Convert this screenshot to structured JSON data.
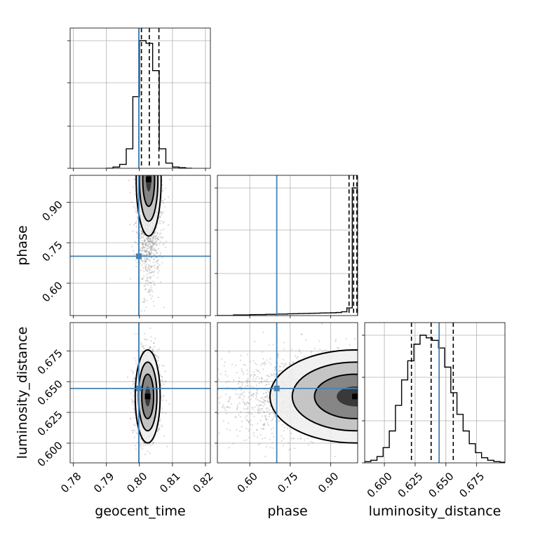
{
  "chart_data": {
    "type": "corner",
    "parameters": [
      "geocent_time",
      "phase",
      "luminosity_distance"
    ],
    "truths": {
      "geocent_time": 0.7998,
      "phase": 0.7,
      "luminosity_distance": 0.6445
    },
    "axes": {
      "geocent_time": {
        "range": [
          0.779,
          0.8215
        ],
        "ticks": [
          "0.78",
          "0.79",
          "0.80",
          "0.81",
          "0.82"
        ],
        "tick_values": [
          0.78,
          0.79,
          0.8,
          0.81,
          0.82
        ]
      },
      "phase": {
        "range": [
          0.48,
          1.0
        ],
        "ticks": [
          "0.60",
          "0.75",
          "0.90"
        ],
        "tick_values": [
          0.6,
          0.75,
          0.9
        ]
      },
      "luminosity_distance": {
        "range": [
          0.584,
          0.698
        ],
        "ticks": [
          "0.600",
          "0.625",
          "0.650",
          "0.675"
        ],
        "tick_values": [
          0.6,
          0.625,
          0.65,
          0.675
        ]
      }
    },
    "marginals": {
      "geocent_time": {
        "bin_edges": [
          0.79,
          0.792,
          0.794,
          0.796,
          0.798,
          0.8,
          0.802,
          0.804,
          0.806,
          0.808,
          0.81,
          0.812,
          0.814,
          0.816
        ],
        "counts": [
          0.0,
          0.01,
          0.03,
          0.15,
          0.55,
          0.98,
          0.96,
          0.75,
          0.15,
          0.04,
          0.01,
          0.005,
          0.0
        ],
        "quantiles": [
          0.8006,
          0.803,
          0.8059
        ]
      },
      "phase": {
        "bin_edges": [
          0.48,
          0.5,
          0.52,
          0.54,
          0.56,
          0.58,
          0.6,
          0.62,
          0.64,
          0.66,
          0.68,
          0.7,
          0.72,
          0.74,
          0.76,
          0.78,
          0.8,
          0.82,
          0.84,
          0.86,
          0.88,
          0.9,
          0.92,
          0.94,
          0.96,
          0.98,
          1.0
        ],
        "counts": [
          0.0,
          0.0,
          0.0,
          0.005,
          0.005,
          0.005,
          0.007,
          0.008,
          0.008,
          0.01,
          0.01,
          0.012,
          0.012,
          0.014,
          0.015,
          0.016,
          0.017,
          0.018,
          0.019,
          0.02,
          0.021,
          0.022,
          0.024,
          0.03,
          0.06,
          1.0
        ],
        "quantiles": [
          0.968,
          0.985,
          0.997
        ]
      },
      "luminosity_distance": {
        "bin_edges": [
          0.584,
          0.589,
          0.594,
          0.599,
          0.604,
          0.609,
          0.614,
          0.619,
          0.624,
          0.629,
          0.634,
          0.639,
          0.644,
          0.649,
          0.654,
          0.659,
          0.664,
          0.669,
          0.674,
          0.679,
          0.684,
          0.689,
          0.694,
          0.698
        ],
        "counts": [
          0.01,
          0.02,
          0.05,
          0.12,
          0.25,
          0.45,
          0.65,
          0.8,
          0.93,
          1.0,
          0.98,
          0.96,
          0.9,
          0.75,
          0.55,
          0.38,
          0.25,
          0.15,
          0.08,
          0.04,
          0.02,
          0.01,
          0.005
        ],
        "quantiles": [
          0.622,
          0.638,
          0.656
        ]
      }
    },
    "joint": {
      "geocent_time_vs_phase": {
        "center": [
          0.8028,
          0.985
        ],
        "spread": [
          0.0018,
          0.1
        ]
      },
      "geocent_time_vs_luminosity_distance": {
        "center": [
          0.8025,
          0.638
        ],
        "spread": [
          0.0018,
          0.018
        ]
      },
      "phase_vs_luminosity_distance": {
        "center": [
          0.99,
          0.638
        ],
        "spread": [
          0.15,
          0.018
        ]
      }
    },
    "colors": {
      "truth": "#4682b4",
      "contour": "#000000",
      "scatter": "#555555"
    }
  }
}
